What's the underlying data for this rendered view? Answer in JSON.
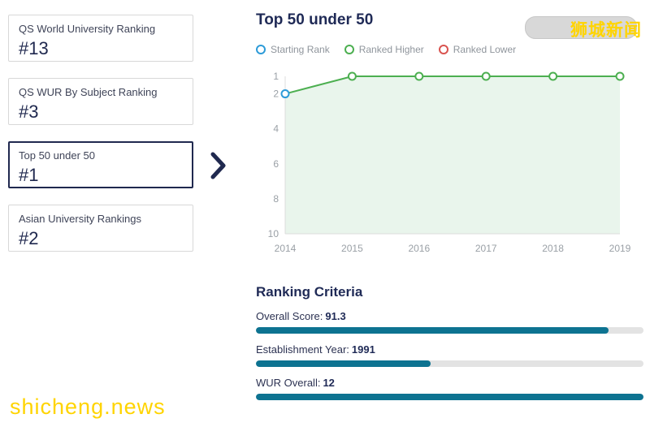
{
  "watermark": {
    "top": "狮城新闻",
    "bottom": "shicheng.news"
  },
  "sidebar": {
    "cards": [
      {
        "label": "QS World University Ranking",
        "rank": "#13",
        "selected": false
      },
      {
        "label": "QS WUR By Subject Ranking",
        "rank": "#3",
        "selected": false
      },
      {
        "label": "Top 50 under 50",
        "rank": "#1",
        "selected": true
      },
      {
        "label": "Asian University Rankings",
        "rank": "#2",
        "selected": false
      }
    ]
  },
  "main": {
    "title": "Top 50 under 50",
    "legend": [
      {
        "label": "Starting Rank",
        "color": "#2d9bd8"
      },
      {
        "label": "Ranked Higher",
        "color": "#4caf50"
      },
      {
        "label": "Ranked Lower",
        "color": "#d9534f"
      }
    ],
    "criteria": {
      "title": "Ranking Criteria",
      "bar_color": "#0d7391",
      "rows": [
        {
          "label": "Overall Score:",
          "value": "91.3",
          "percent": 91
        },
        {
          "label": "Establishment Year:",
          "value": "1991",
          "percent": 45
        },
        {
          "label": "WUR Overall:",
          "value": "12",
          "percent": 100
        }
      ]
    }
  },
  "chart_data": {
    "type": "line",
    "title": "Top 50 under 50",
    "x": [
      "2014",
      "2015",
      "2016",
      "2017",
      "2018",
      "2019"
    ],
    "values": [
      2,
      1,
      1,
      1,
      1,
      1
    ],
    "point_types": [
      "starting",
      "higher",
      "higher",
      "higher",
      "higher",
      "higher"
    ],
    "ylim": [
      1,
      10
    ],
    "yticks": [
      1,
      2,
      4,
      6,
      8,
      10
    ],
    "y_inverted": true,
    "line_color": "#4caf50",
    "area_color": "#e9f5ec",
    "axis_color": "#dcdcdc",
    "tick_color": "#9aa0a6",
    "colors": {
      "starting": "#2d9bd8",
      "higher": "#4caf50",
      "lower": "#d9534f"
    }
  }
}
